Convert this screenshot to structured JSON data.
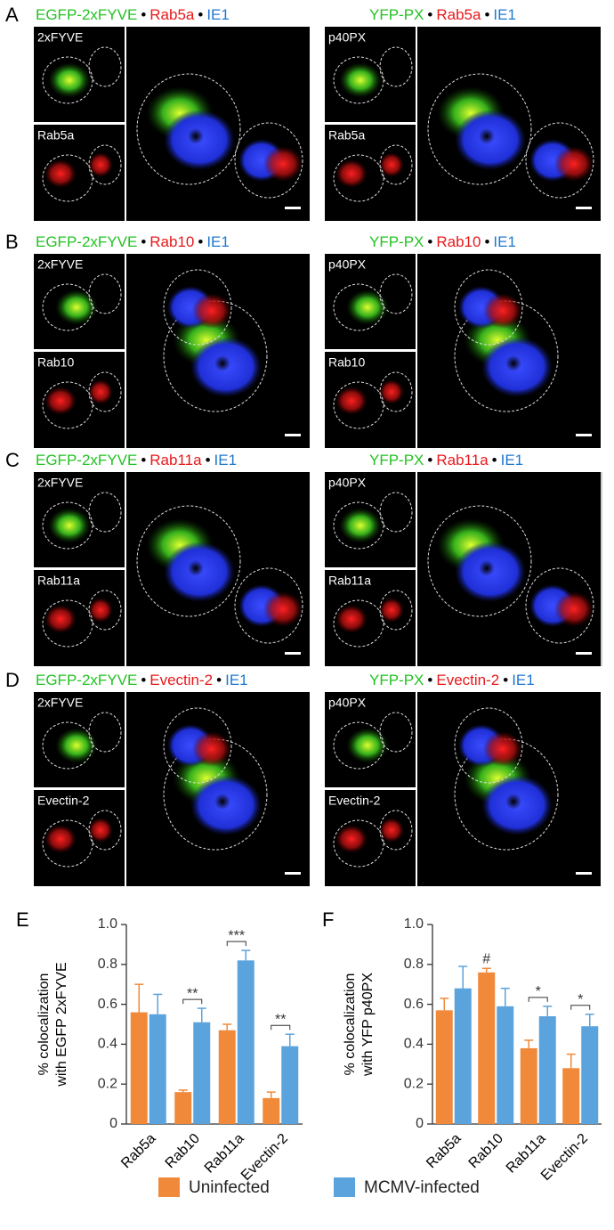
{
  "panels": [
    {
      "label": "A",
      "left": {
        "title": [
          {
            "text": "EGFP-2xFYVE",
            "color": "#22c322"
          },
          {
            "text": "•",
            "color": "#000000"
          },
          {
            "text": "Rab5a",
            "color": "#e8191b"
          },
          {
            "text": "•",
            "color": "#000000"
          },
          {
            "text": "IE1",
            "color": "#1f77d0"
          }
        ],
        "insets": [
          "2xFYVE",
          "Rab5a"
        ]
      },
      "right": {
        "title": [
          {
            "text": "YFP-PX",
            "color": "#22c322"
          },
          {
            "text": "•",
            "color": "#000000"
          },
          {
            "text": "Rab5a",
            "color": "#e8191b"
          },
          {
            "text": "•",
            "color": "#000000"
          },
          {
            "text": "IE1",
            "color": "#1f77d0"
          }
        ],
        "insets": [
          "p40PX",
          "Rab5a"
        ]
      }
    },
    {
      "label": "B",
      "left": {
        "title": [
          {
            "text": "EGFP-2xFYVE",
            "color": "#22c322"
          },
          {
            "text": "•",
            "color": "#000000"
          },
          {
            "text": "Rab10",
            "color": "#e8191b"
          },
          {
            "text": "•",
            "color": "#000000"
          },
          {
            "text": "IE1",
            "color": "#1f77d0"
          }
        ],
        "insets": [
          "2xFYVE",
          "Rab10"
        ]
      },
      "right": {
        "title": [
          {
            "text": "YFP-PX",
            "color": "#22c322"
          },
          {
            "text": "•",
            "color": "#000000"
          },
          {
            "text": "Rab10",
            "color": "#e8191b"
          },
          {
            "text": "•",
            "color": "#000000"
          },
          {
            "text": "IE1",
            "color": "#1f77d0"
          }
        ],
        "insets": [
          "p40PX",
          "Rab10"
        ]
      }
    },
    {
      "label": "C",
      "left": {
        "title": [
          {
            "text": "EGFP-2xFYVE",
            "color": "#22c322"
          },
          {
            "text": "•",
            "color": "#000000"
          },
          {
            "text": "Rab11a",
            "color": "#e8191b"
          },
          {
            "text": "•",
            "color": "#000000"
          },
          {
            "text": "IE1",
            "color": "#1f77d0"
          }
        ],
        "insets": [
          "2xFYVE",
          "Rab11a"
        ]
      },
      "right": {
        "title": [
          {
            "text": "YFP-PX",
            "color": "#22c322"
          },
          {
            "text": "•",
            "color": "#000000"
          },
          {
            "text": "Rab11a",
            "color": "#e8191b"
          },
          {
            "text": "•",
            "color": "#000000"
          },
          {
            "text": "IE1",
            "color": "#1f77d0"
          }
        ],
        "insets": [
          "p40PX",
          "Rab11a"
        ]
      }
    },
    {
      "label": "D",
      "left": {
        "title": [
          {
            "text": "EGFP-2xFYVE",
            "color": "#22c322"
          },
          {
            "text": "•",
            "color": "#000000"
          },
          {
            "text": "Evectin-2",
            "color": "#e8191b"
          },
          {
            "text": "•",
            "color": "#000000"
          },
          {
            "text": "IE1",
            "color": "#1f77d0"
          }
        ],
        "insets": [
          "2xFYVE",
          "Evectin-2"
        ]
      },
      "right": {
        "title": [
          {
            "text": "YFP-PX",
            "color": "#22c322"
          },
          {
            "text": "•",
            "color": "#000000"
          },
          {
            "text": "Evectin-2",
            "color": "#e8191b"
          },
          {
            "text": "•",
            "color": "#000000"
          },
          {
            "text": "IE1",
            "color": "#1f77d0"
          }
        ],
        "insets": [
          "p40PX",
          "Evectin-2"
        ]
      }
    }
  ],
  "chart_data": [
    {
      "type": "bar",
      "panel_label": "E",
      "ylabel": [
        "% colocalization",
        "with EGFP 2xFYVE"
      ],
      "categories": [
        "Rab5a",
        "Rab10",
        "Rab11a",
        "Evectin-2"
      ],
      "series": [
        {
          "name": "Uninfected",
          "color": "#f08a3a",
          "values": [
            0.56,
            0.16,
            0.47,
            0.13
          ],
          "errors": [
            0.14,
            0.01,
            0.03,
            0.03
          ]
        },
        {
          "name": "MCMV-infected",
          "color": "#5ba3dc",
          "values": [
            0.55,
            0.51,
            0.82,
            0.39
          ],
          "errors": [
            0.1,
            0.07,
            0.05,
            0.06
          ]
        }
      ],
      "ylim": [
        0,
        1
      ],
      "yticks": [
        0,
        0.2,
        0.4,
        0.6,
        0.8,
        {
          "value": 1,
          "label": "1.0"
        }
      ],
      "annotations": [
        {
          "text": "**",
          "category": "Rab10"
        },
        {
          "text": "***",
          "category": "Rab11a"
        },
        {
          "text": "**",
          "category": "Evectin-2"
        }
      ]
    },
    {
      "type": "bar",
      "panel_label": "F",
      "ylabel": [
        "% colocalization",
        "with YFP p40PX"
      ],
      "categories": [
        "Rab5a",
        "Rab10",
        "Rab11a",
        "Evectin-2"
      ],
      "series": [
        {
          "color": "#f08a3a",
          "values": [
            0.57,
            0.76,
            0.38,
            0.28
          ],
          "errors": [
            0.06,
            0.02,
            0.04,
            0.07
          ]
        },
        {
          "color": "#5ba3dc",
          "values": [
            0.68,
            0.59,
            0.54,
            0.49
          ],
          "errors": [
            0.11,
            0.09,
            0.05,
            0.06
          ]
        }
      ],
      "ylim": [
        0,
        1
      ],
      "yticks": [
        0,
        0.2,
        0.4,
        0.6,
        0.8,
        {
          "value": 1,
          "label": "1.0"
        }
      ],
      "annotations": [
        {
          "text": "#",
          "category": "Rab10",
          "series": 0
        },
        {
          "text": "*",
          "category": "Rab11a"
        },
        {
          "text": "*",
          "category": "Evectin-2"
        }
      ]
    }
  ]
}
